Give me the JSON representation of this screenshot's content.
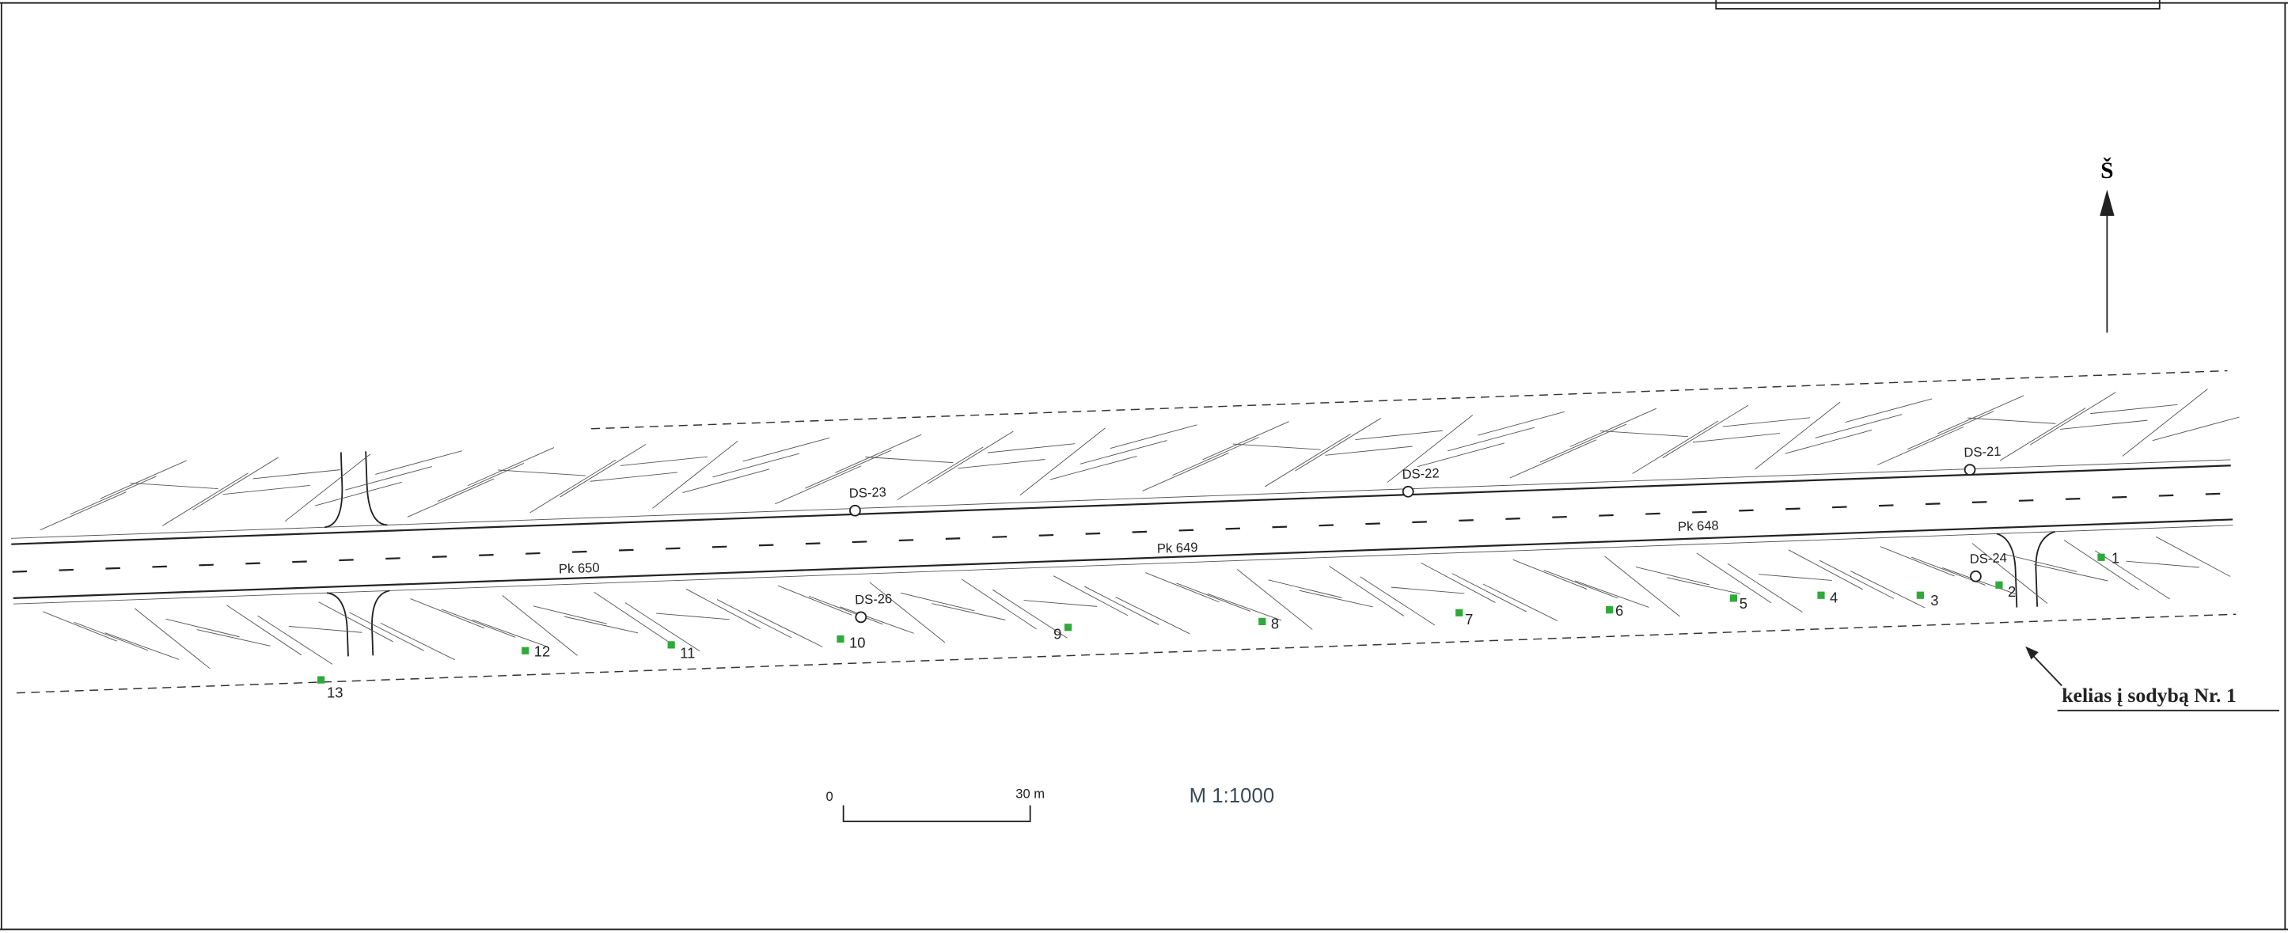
{
  "north": "Š",
  "annotation": "kelias į sodybą Nr. 1",
  "scale_bar": {
    "start": "0",
    "end": "30 m"
  },
  "scale": "M 1:1000",
  "points": [
    "1",
    "2",
    "3",
    "4",
    "5",
    "6",
    "7",
    "8",
    "9",
    "10",
    "11",
    "12",
    "13"
  ],
  "wells": [
    "DS-21",
    "DS-22",
    "DS-23",
    "DS-24",
    "DS-26"
  ],
  "pickets": [
    "Pk 648",
    "Pk 649",
    "Pk 650"
  ]
}
